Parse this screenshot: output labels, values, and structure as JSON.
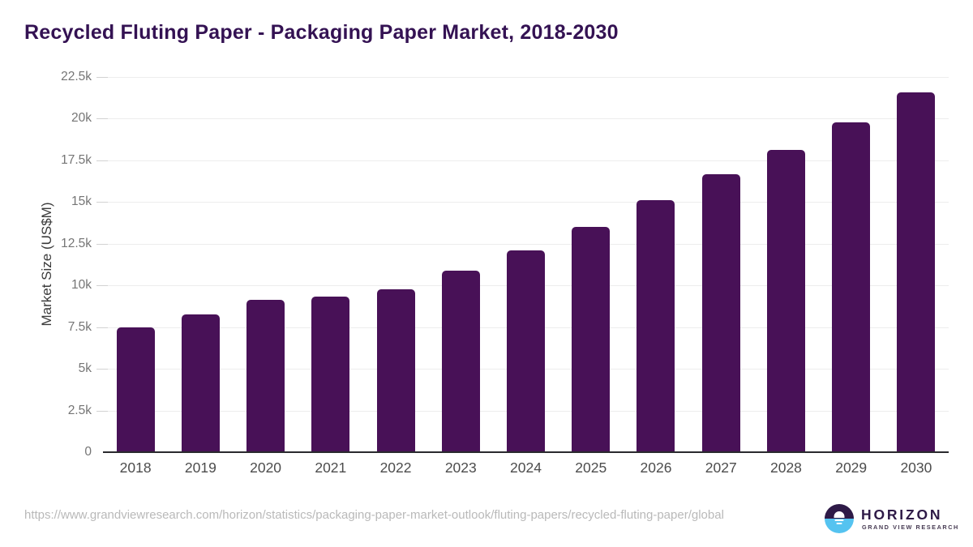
{
  "title": "Recycled Fluting Paper - Packaging Paper Market, 2018-2030",
  "source_url": "https://www.grandviewresearch.com/horizon/statistics/packaging-paper-market-outlook/fluting-papers/recycled-fluting-paper/global",
  "logo": {
    "name": "HORIZON",
    "subtitle": "GRAND VIEW RESEARCH"
  },
  "colors": {
    "bar": "#481157",
    "title": "#341253",
    "axis_line": "#2a2a2e",
    "gridline": "#ededed",
    "ytick_label": "#757575",
    "xtick_label": "#4c4c4c",
    "url_text": "#b9b9b9",
    "logo_purple": "#2e1a47",
    "logo_blue": "#55c3f0"
  },
  "chart_data": {
    "type": "bar",
    "title": "Recycled Fluting Paper - Packaging Paper Market, 2018-2030",
    "categories": [
      "2018",
      "2019",
      "2020",
      "2021",
      "2022",
      "2023",
      "2024",
      "2025",
      "2026",
      "2027",
      "2028",
      "2029",
      "2030"
    ],
    "values": [
      7500,
      8250,
      9150,
      9350,
      9750,
      10900,
      12100,
      13500,
      15100,
      16650,
      18150,
      19800,
      21600
    ],
    "xlabel": "",
    "ylabel": "Market Size (US$M)",
    "ylim": [
      0,
      22500
    ],
    "ytick_interval": 2500,
    "ytick_labels": [
      "0",
      "2.5k",
      "5k",
      "7.5k",
      "10k",
      "12.5k",
      "15k",
      "17.5k",
      "20k",
      "22.5k"
    ],
    "grid": "horizontal",
    "legend": "none"
  }
}
